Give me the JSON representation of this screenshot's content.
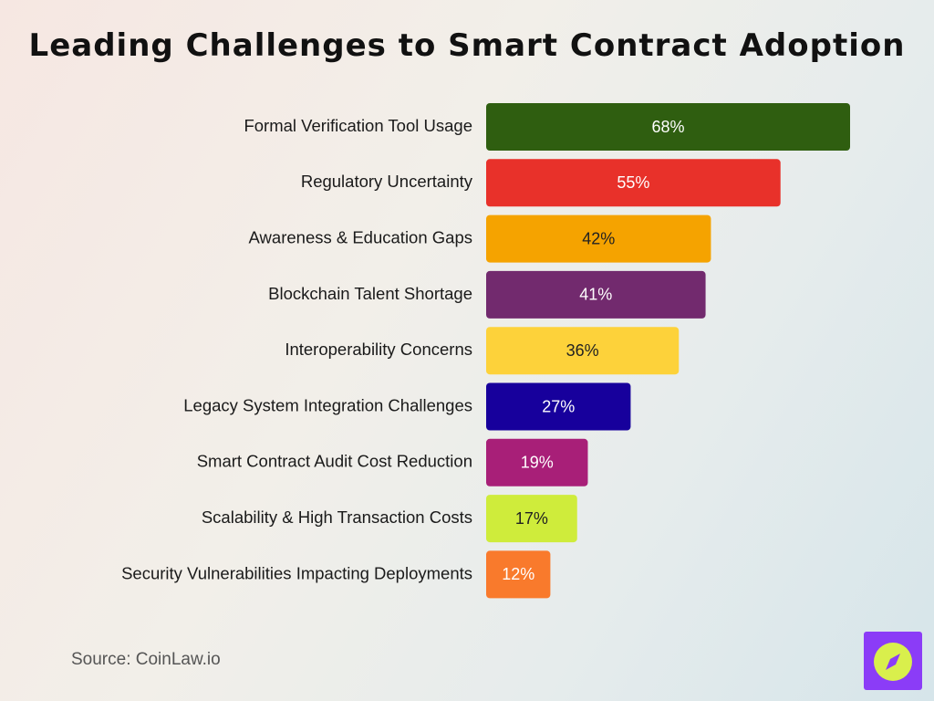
{
  "title": "Leading Challenges to Smart Contract Adoption",
  "source": "Source: CoinLaw.io",
  "logo_icon": "compass-logo",
  "chart_data": {
    "type": "bar",
    "orientation": "horizontal",
    "title": "Leading Challenges to Smart Contract Adoption",
    "xlabel": "",
    "ylabel": "",
    "xlim": [
      0,
      70
    ],
    "grid": false,
    "categories": [
      "Formal Verification Tool Usage",
      "Regulatory Uncertainty",
      "Awareness & Education Gaps",
      "Blockchain Talent Shortage",
      "Interoperability Concerns",
      "Legacy System Integration Challenges",
      "Smart Contract Audit Cost Reduction",
      "Scalability & High Transaction Costs",
      "Security Vulnerabilities Impacting Deployments"
    ],
    "values": [
      68,
      55,
      42,
      41,
      36,
      27,
      19,
      17,
      12
    ],
    "data_labels": [
      "68%",
      "55%",
      "42%",
      "41%",
      "36%",
      "27%",
      "19%",
      "17%",
      "12%"
    ],
    "colors": [
      "#2f5e10",
      "#e8312a",
      "#f5a300",
      "#722a6e",
      "#fdd23a",
      "#17009c",
      "#a81f78",
      "#cfec3b",
      "#f97a2c"
    ],
    "label_colors": [
      "#ffffff",
      "#ffffff",
      "#222222",
      "#ffffff",
      "#222222",
      "#ffffff",
      "#ffffff",
      "#222222",
      "#ffffff"
    ]
  }
}
